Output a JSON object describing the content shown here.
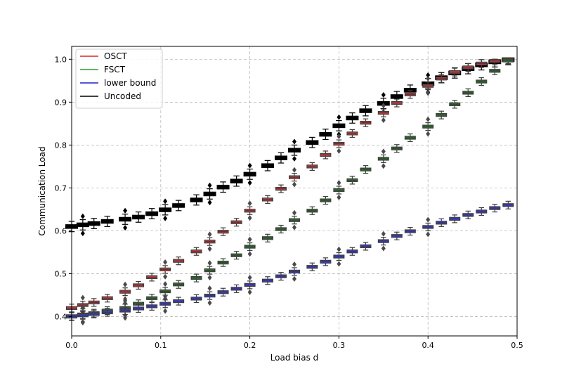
{
  "chart_data": {
    "type": "box",
    "xlabel": "Load bias d",
    "ylabel": "Communication Load",
    "xlim": [
      0.0,
      0.5
    ],
    "ylim": [
      0.355,
      1.03
    ],
    "xticks": [
      "0.0",
      "0.1",
      "0.2",
      "0.3",
      "0.4",
      "0.5"
    ],
    "yticks": [
      "0.4",
      "0.5",
      "0.6",
      "0.7",
      "0.8",
      "0.9",
      "1.0"
    ],
    "grid": true,
    "legend_position": "upper-left",
    "colors": {
      "OSCT": "#d62728",
      "FSCT": "#2ca02c",
      "lower bound": "#1f1fd6",
      "Uncoded": "#000000"
    },
    "series": [
      {
        "name": "Uncoded",
        "x": [
          0.0,
          0.0125,
          0.025,
          0.04,
          0.06,
          0.075,
          0.09,
          0.105,
          0.12,
          0.14,
          0.155,
          0.17,
          0.185,
          0.2,
          0.22,
          0.235,
          0.25,
          0.27,
          0.285,
          0.3,
          0.315,
          0.33,
          0.35,
          0.365,
          0.38,
          0.4,
          0.415,
          0.43,
          0.445,
          0.46,
          0.475,
          0.49
        ],
        "values": [
          0.61,
          0.614,
          0.617,
          0.622,
          0.627,
          0.632,
          0.64,
          0.649,
          0.659,
          0.672,
          0.686,
          0.702,
          0.716,
          0.732,
          0.752,
          0.77,
          0.788,
          0.806,
          0.825,
          0.845,
          0.863,
          0.88,
          0.897,
          0.913,
          0.928,
          0.943,
          0.957,
          0.968,
          0.978,
          0.987,
          0.994,
          0.999
        ]
      },
      {
        "name": "OSCT",
        "x": [
          0.0,
          0.0125,
          0.025,
          0.04,
          0.06,
          0.075,
          0.09,
          0.105,
          0.12,
          0.14,
          0.155,
          0.17,
          0.185,
          0.2,
          0.22,
          0.235,
          0.25,
          0.27,
          0.285,
          0.3,
          0.315,
          0.33,
          0.35,
          0.365,
          0.38,
          0.4,
          0.415,
          0.43,
          0.445,
          0.46,
          0.475,
          0.49
        ],
        "values": [
          0.42,
          0.427,
          0.433,
          0.443,
          0.458,
          0.473,
          0.492,
          0.51,
          0.53,
          0.552,
          0.575,
          0.598,
          0.62,
          0.647,
          0.673,
          0.698,
          0.725,
          0.75,
          0.777,
          0.803,
          0.827,
          0.852,
          0.875,
          0.898,
          0.918,
          0.938,
          0.955,
          0.97,
          0.981,
          0.99,
          0.996,
          0.999
        ]
      },
      {
        "name": "FSCT",
        "x": [
          0.0,
          0.0125,
          0.025,
          0.04,
          0.06,
          0.075,
          0.09,
          0.105,
          0.12,
          0.14,
          0.155,
          0.17,
          0.185,
          0.2,
          0.22,
          0.235,
          0.25,
          0.27,
          0.285,
          0.3,
          0.315,
          0.33,
          0.35,
          0.365,
          0.38,
          0.4,
          0.415,
          0.43,
          0.445,
          0.46,
          0.475,
          0.49
        ],
        "values": [
          0.401,
          0.405,
          0.408,
          0.414,
          0.42,
          0.43,
          0.443,
          0.459,
          0.475,
          0.49,
          0.508,
          0.526,
          0.543,
          0.563,
          0.583,
          0.604,
          0.625,
          0.647,
          0.671,
          0.695,
          0.718,
          0.743,
          0.768,
          0.792,
          0.817,
          0.843,
          0.87,
          0.895,
          0.922,
          0.948,
          0.973,
          0.997
        ]
      },
      {
        "name": "lower bound",
        "x": [
          0.0,
          0.0125,
          0.025,
          0.04,
          0.06,
          0.075,
          0.09,
          0.105,
          0.12,
          0.14,
          0.155,
          0.17,
          0.185,
          0.2,
          0.22,
          0.235,
          0.25,
          0.27,
          0.285,
          0.3,
          0.315,
          0.33,
          0.35,
          0.365,
          0.38,
          0.4,
          0.415,
          0.43,
          0.445,
          0.46,
          0.475,
          0.49
        ],
        "values": [
          0.4,
          0.403,
          0.406,
          0.41,
          0.414,
          0.419,
          0.424,
          0.43,
          0.436,
          0.442,
          0.449,
          0.457,
          0.465,
          0.474,
          0.484,
          0.494,
          0.505,
          0.516,
          0.528,
          0.54,
          0.552,
          0.564,
          0.576,
          0.588,
          0.599,
          0.609,
          0.619,
          0.628,
          0.637,
          0.645,
          0.653,
          0.66
        ]
      }
    ]
  }
}
